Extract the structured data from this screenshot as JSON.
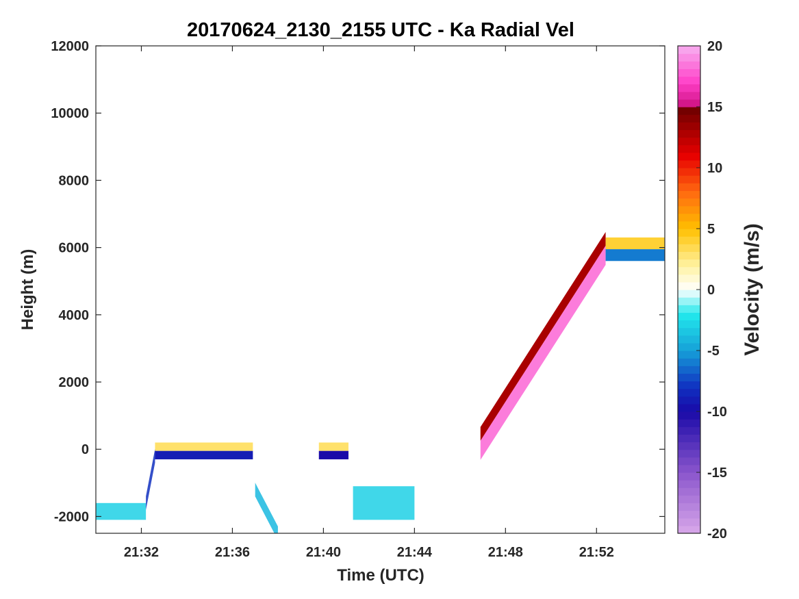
{
  "chart_data": {
    "type": "heatmap",
    "title": "20170624_2130_2155 UTC - Ka Radial Vel",
    "xlabel": "Time (UTC)",
    "ylabel": "Height (m)",
    "xlim": [
      "21:30",
      "21:55"
    ],
    "ylim": [
      -2500,
      12000
    ],
    "x_ticks": [
      "21:32",
      "21:36",
      "21:40",
      "21:44",
      "21:48",
      "21:52"
    ],
    "y_ticks": [
      -2000,
      0,
      2000,
      4000,
      6000,
      8000,
      10000,
      12000
    ],
    "colorbar": {
      "label": "Velocity (m/s)",
      "range": [
        -20,
        20
      ],
      "ticks": [
        -20,
        -15,
        -10,
        -5,
        0,
        5,
        10,
        15,
        20
      ],
      "stops": [
        {
          "value": -20,
          "color": "#d9a8ea"
        },
        {
          "value": -15,
          "color": "#8a55cc"
        },
        {
          "value": -10,
          "color": "#1a0aa8"
        },
        {
          "value": -8,
          "color": "#1030c0"
        },
        {
          "value": -5,
          "color": "#16a0d8"
        },
        {
          "value": -2,
          "color": "#22e8ec"
        },
        {
          "value": 0,
          "color": "#ffffff"
        },
        {
          "value": 2,
          "color": "#fff2a0"
        },
        {
          "value": 5,
          "color": "#ffc000"
        },
        {
          "value": 8,
          "color": "#ff6a10"
        },
        {
          "value": 11,
          "color": "#e80000"
        },
        {
          "value": 15,
          "color": "#6a0000"
        },
        {
          "value": 15.01,
          "color": "#cc1080"
        },
        {
          "value": 17,
          "color": "#ff40c8"
        },
        {
          "value": 20,
          "color": "#f7b0f0"
        }
      ]
    },
    "features": [
      {
        "kind": "near-surface band",
        "start": "21:30",
        "end": "21:32.2",
        "height": [
          -2100,
          -1600
        ],
        "velocity": -3
      },
      {
        "kind": "ascent edge",
        "start": "21:32.2",
        "end": "21:32.6",
        "height_from": -1600,
        "height_to": -200,
        "velocity": -8
      },
      {
        "kind": "level band",
        "start": "21:32.6",
        "end": "21:36.9",
        "height": [
          -300,
          200
        ],
        "velocity_top": 3,
        "velocity_bottom": -9
      },
      {
        "kind": "descent",
        "start": "21:37.0",
        "end": "21:38.0",
        "height_from": -1200,
        "height_to": -2500,
        "velocity": -4
      },
      {
        "kind": "level band",
        "start": "21:39.8",
        "end": "21:41.1",
        "height": [
          -300,
          200
        ],
        "velocity_top": 3,
        "velocity_bottom": -10
      },
      {
        "kind": "near-surface band",
        "start": "21:41.3",
        "end": "21:44.0",
        "height": [
          -2100,
          -1100
        ],
        "velocity": -3
      },
      {
        "kind": "ascent",
        "start": "21:46.9",
        "end": "21:52.4",
        "height_from": 500,
        "height_to": 6300,
        "velocity_top": 13,
        "velocity_bottom": 18
      },
      {
        "kind": "upper level band",
        "start": "21:52.4",
        "end": "21:55",
        "height": [
          5600,
          6300
        ],
        "velocity_top": 4,
        "velocity_bottom": -6
      }
    ]
  }
}
